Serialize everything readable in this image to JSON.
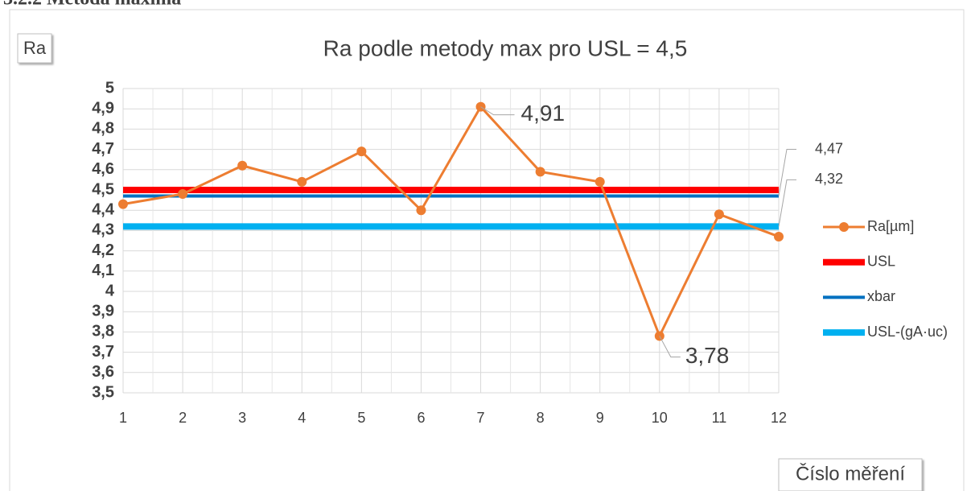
{
  "heading": "3.2.2 Metoda maxima",
  "chart_data": {
    "type": "line",
    "title": "Ra podle metody max pro USL = 4,5",
    "y_label": "Ra",
    "x_label": "Číslo měření",
    "categories": [
      "1",
      "2",
      "3",
      "4",
      "5",
      "6",
      "7",
      "8",
      "9",
      "10",
      "11",
      "12"
    ],
    "ylim": [
      3.5,
      5
    ],
    "yticks": [
      {
        "value": 3.5,
        "label": "3,5"
      },
      {
        "value": 3.6,
        "label": "3,6"
      },
      {
        "value": 3.7,
        "label": "3,7"
      },
      {
        "value": 3.8,
        "label": "3,8"
      },
      {
        "value": 3.9,
        "label": "3,9"
      },
      4,
      {
        "value": 4.1,
        "label": "4,1"
      },
      {
        "value": 4.2,
        "label": "4,2"
      },
      {
        "value": 4.3,
        "label": "4,3"
      },
      {
        "value": 4.4,
        "label": "4,4"
      },
      {
        "value": 4.5,
        "label": "4,5"
      },
      {
        "value": 4.6,
        "label": "4,6"
      },
      {
        "value": 4.7,
        "label": "4,7"
      },
      {
        "value": 4.8,
        "label": "4,8"
      },
      {
        "value": 4.9,
        "label": "4,9"
      },
      5
    ],
    "grid": true,
    "legend": "right",
    "series": [
      {
        "name": "Ra[µm]",
        "color": "#ed7d31",
        "markers": true,
        "width": 3,
        "values": [
          4.43,
          4.48,
          4.62,
          4.54,
          4.69,
          4.4,
          4.91,
          4.59,
          4.54,
          3.78,
          4.38,
          4.27
        ],
        "value_labels": [
          null,
          null,
          null,
          null,
          null,
          null,
          "4,91",
          null,
          null,
          "3,78",
          null,
          null
        ]
      },
      {
        "name": "USL",
        "color": "#ff0000",
        "markers": false,
        "width": 8,
        "values": [
          4.5,
          4.5,
          4.5,
          4.5,
          4.5,
          4.5,
          4.5,
          4.5,
          4.5,
          4.5,
          4.5,
          4.5
        ]
      },
      {
        "name": "xbar",
        "color": "#0070c0",
        "markers": false,
        "width": 4,
        "values": [
          4.47,
          4.47,
          4.47,
          4.47,
          4.47,
          4.47,
          4.47,
          4.47,
          4.47,
          4.47,
          4.47,
          4.47
        ],
        "value_labels": [
          null,
          null,
          null,
          null,
          null,
          null,
          null,
          null,
          null,
          null,
          null,
          "4,47"
        ]
      },
      {
        "name": "USL-(gA·uc)",
        "color": "#00b0f0",
        "markers": false,
        "width": 8,
        "values": [
          4.32,
          4.32,
          4.32,
          4.32,
          4.32,
          4.32,
          4.32,
          4.32,
          4.32,
          4.32,
          4.32,
          4.32
        ],
        "value_labels": [
          null,
          null,
          null,
          null,
          null,
          null,
          null,
          null,
          null,
          null,
          null,
          "4,32"
        ]
      }
    ]
  }
}
